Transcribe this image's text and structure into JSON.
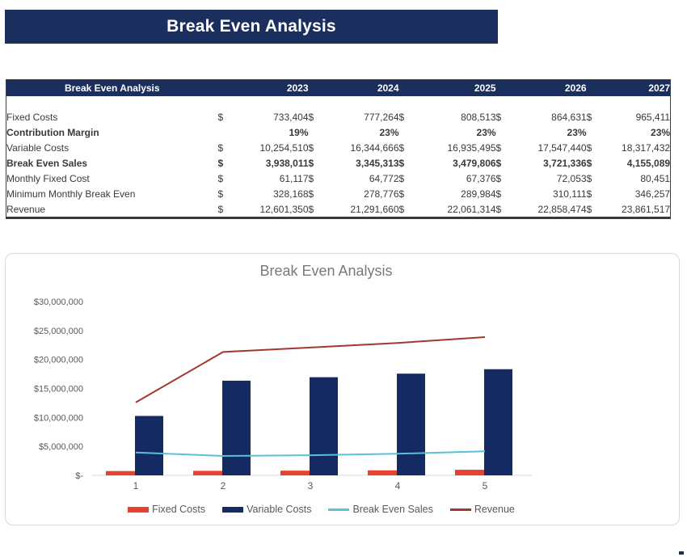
{
  "banner": {
    "title": "Break Even Analysis"
  },
  "colors": {
    "navy": "#1B2F5F",
    "bar_navy": "#142A62",
    "bar_red": "#E5422F",
    "line_cyan": "#58C1D5",
    "line_dark_red": "#A43730",
    "chart_text": "#595959",
    "panel_border": "#D8D8D8"
  },
  "table": {
    "header": {
      "title": "Break Even Analysis",
      "years": [
        "2023",
        "2024",
        "2025",
        "2026",
        "2027"
      ]
    },
    "rows": [
      {
        "label": "Fixed Costs",
        "bold": false,
        "dollar": true,
        "values": [
          "733,404",
          "777,264",
          "808,513",
          "864,631",
          "965,411"
        ]
      },
      {
        "label": "Contribution Margin",
        "bold": true,
        "dollar": false,
        "values": [
          "19%",
          "23%",
          "23%",
          "23%",
          "23%"
        ]
      },
      {
        "label": "Variable Costs",
        "bold": false,
        "dollar": true,
        "values": [
          "10,254,510",
          "16,344,666",
          "16,935,495",
          "17,547,440",
          "18,317,432"
        ]
      },
      {
        "label": "Break Even Sales",
        "bold": true,
        "dollar": true,
        "values": [
          "3,938,011",
          "3,345,313",
          "3,479,806",
          "3,721,336",
          "4,155,089"
        ]
      },
      {
        "label": "Monthly Fixed Cost",
        "bold": false,
        "dollar": true,
        "values": [
          "61,117",
          "64,772",
          "67,376",
          "72,053",
          "80,451"
        ]
      },
      {
        "label": "Minimum Monthly Break Even",
        "bold": false,
        "dollar": true,
        "values": [
          "328,168",
          "278,776",
          "289,984",
          "310,111",
          "346,257"
        ]
      },
      {
        "label": "Revenue",
        "bold": false,
        "dollar": true,
        "values": [
          "12,601,350",
          "21,291,660",
          "22,061,314",
          "22,858,474",
          "23,861,517"
        ]
      }
    ]
  },
  "chart_data": {
    "type": "bar",
    "subtype": "combo-bar-line",
    "title": "Break Even Analysis",
    "categories": [
      "1",
      "2",
      "3",
      "4",
      "5"
    ],
    "series": [
      {
        "name": "Fixed Costs",
        "render": "bar",
        "color": "#E5422F",
        "values": [
          733404,
          777264,
          808513,
          864631,
          965411
        ]
      },
      {
        "name": "Variable Costs",
        "render": "bar",
        "color": "#142A62",
        "values": [
          10254510,
          16344666,
          16935495,
          17547440,
          18317432
        ]
      },
      {
        "name": "Break Even Sales",
        "render": "line",
        "color": "#58C1D5",
        "values": [
          3938011,
          3345313,
          3479806,
          3721336,
          4155089
        ]
      },
      {
        "name": "Revenue",
        "render": "line",
        "color": "#A43730",
        "values": [
          12601350,
          21291660,
          22061314,
          22858474,
          23861517
        ]
      }
    ],
    "xlabel": "",
    "ylabel": "",
    "ylim": [
      0,
      30000000
    ],
    "ytick_step": 5000000,
    "ytick_labels": [
      "$-",
      "$5,000,000",
      "$10,000,000",
      "$15,000,000",
      "$20,000,000",
      "$25,000,000",
      "$30,000,000"
    ],
    "grid": false,
    "legend_position": "bottom"
  }
}
